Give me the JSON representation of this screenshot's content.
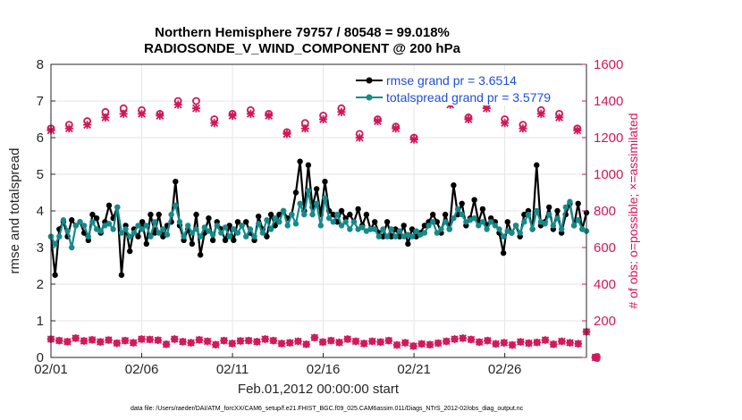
{
  "chart_data": {
    "type": "line",
    "title": "Northern Hemisphere 79757 / 80548 = 99.018%",
    "subtitle": "RADIOSONDE_V_WIND_COMPONENT @ 200 hPa",
    "xlabel": "Feb.01,2012 00:00:00 start",
    "ylabel": "rmse and totalspread",
    "ylabel_right": "# of obs: o=possible; ×=assimilated",
    "footer": "data file: /Users/raeder/DAI/ATM_forcXX/CAM6_setup/f.e21.FHIST_BGC.f09_025.CAM6assim.011/Diags_NTrS_2012-02/obs_diag_output.nc",
    "x_range": [
      1,
      30.5
    ],
    "x_ticks": [
      1,
      6,
      11,
      16,
      21,
      26
    ],
    "x_tick_labels": [
      "02/01",
      "02/06",
      "02/11",
      "02/16",
      "02/21",
      "02/26"
    ],
    "ylim": [
      0,
      8
    ],
    "y_ticks": [
      "0",
      "1",
      "2",
      "3",
      "4",
      "5",
      "6",
      "7",
      "8"
    ],
    "ylim_right": [
      0,
      1600
    ],
    "y_ticks_right": [
      "0",
      "200",
      "400",
      "600",
      "800",
      "1000",
      "1200",
      "1400",
      "1600"
    ],
    "grid": true,
    "legend_position": "top-right",
    "colors": {
      "rmse": "#000000",
      "spread": "#168a8a",
      "obs": "#d0185a",
      "legend_text": "#1f4fd1"
    },
    "series": [
      {
        "name": "rmse grand pr = 3.6514",
        "axis": "left",
        "values": [
          3.3,
          2.25,
          3.5,
          3.7,
          3.3,
          3.75,
          3.6,
          3.7,
          3.4,
          3.2,
          3.9,
          3.8,
          3.4,
          3.7,
          4.15,
          3.8,
          4.1,
          2.25,
          3.6,
          2.9,
          3.5,
          3.3,
          3.7,
          3.1,
          3.9,
          3.4,
          3.9,
          3.3,
          3.6,
          3.7,
          4.8,
          3.6,
          3.2,
          3.5,
          3.1,
          3.9,
          2.8,
          3.4,
          3.8,
          3.2,
          3.7,
          3.5,
          3.2,
          3.6,
          3.2,
          3.7,
          3.6,
          3.7,
          3.4,
          3.2,
          3.85,
          3.5,
          3.3,
          3.9,
          3.6,
          3.9,
          4.0,
          3.8,
          3.9,
          4.5,
          5.35,
          4.0,
          5.25,
          4.1,
          4.6,
          3.9,
          4.8,
          4.0,
          3.9,
          3.7,
          4.0,
          3.8,
          3.9,
          3.7,
          4.05,
          3.6,
          3.9,
          3.5,
          3.7,
          3.4,
          3.3,
          3.7,
          3.3,
          3.5,
          3.3,
          3.6,
          3.1,
          3.5,
          3.3,
          3.4,
          3.6,
          3.7,
          3.9,
          3.7,
          3.4,
          3.9,
          3.5,
          4.7,
          3.9,
          4.2,
          3.6,
          3.8,
          4.3,
          3.7,
          4.05,
          3.6,
          3.8,
          3.7,
          3.4,
          2.85,
          3.7,
          3.4,
          3.6,
          3.3,
          3.9,
          4.0,
          3.5,
          5.25,
          3.6,
          3.7,
          4.1,
          3.5,
          4.0,
          3.4,
          3.9,
          4.2,
          3.6,
          4.2,
          3.5,
          3.95
        ],
        "marker": "dot"
      },
      {
        "name": "totalspread grand pr = 3.5779",
        "axis": "left",
        "values": [
          3.3,
          3.1,
          3.3,
          3.75,
          3.45,
          3.0,
          3.6,
          3.7,
          3.6,
          3.3,
          3.7,
          3.5,
          3.45,
          3.6,
          3.65,
          3.5,
          4.1,
          3.4,
          3.5,
          3.3,
          3.4,
          3.6,
          3.5,
          3.6,
          3.3,
          3.7,
          3.4,
          3.5,
          3.35,
          3.9,
          4.15,
          3.7,
          3.3,
          3.6,
          3.4,
          3.5,
          3.3,
          3.55,
          3.45,
          3.35,
          3.6,
          3.4,
          3.55,
          3.3,
          3.5,
          3.4,
          3.6,
          3.3,
          3.5,
          3.3,
          3.65,
          3.4,
          3.75,
          3.5,
          3.8,
          3.7,
          4.0,
          3.6,
          3.9,
          3.65,
          4.2,
          3.9,
          4.55,
          3.9,
          4.2,
          3.6,
          4.35,
          3.8,
          3.7,
          3.9,
          3.6,
          3.7,
          3.5,
          3.7,
          3.5,
          3.55,
          3.45,
          3.5,
          3.5,
          3.3,
          3.5,
          3.3,
          3.5,
          3.3,
          3.45,
          3.3,
          3.35,
          3.3,
          3.45,
          3.35,
          3.4,
          3.6,
          3.7,
          3.4,
          3.5,
          3.7,
          3.5,
          3.8,
          4.05,
          3.9,
          3.7,
          3.75,
          3.8,
          3.6,
          3.7,
          3.5,
          3.7,
          3.6,
          3.5,
          3.3,
          3.45,
          3.4,
          3.6,
          3.4,
          3.7,
          3.9,
          3.5,
          4.0,
          3.7,
          3.65,
          3.9,
          3.6,
          3.8,
          3.5,
          4.1,
          4.25,
          3.6,
          3.75,
          3.5,
          3.45
        ],
        "marker": "dot"
      },
      {
        "name": "possible",
        "axis": "right",
        "marker": "o",
        "values_daily_start": 1,
        "values": [
          1250,
          1270,
          1290,
          1340,
          1360,
          1350,
          1330,
          1400,
          1400,
          1300,
          1330,
          1350,
          1330,
          1230,
          1280,
          1320,
          1360,
          1220,
          1300,
          1260,
          1200,
          1430,
          1400,
          1310,
          1380,
          1300,
          1270,
          1350,
          1330,
          1250,
          0
        ],
        "values_assim": [
          1240,
          1250,
          1270,
          1310,
          1330,
          1330,
          1320,
          1380,
          1360,
          1280,
          1320,
          1330,
          1320,
          1220,
          1250,
          1300,
          1340,
          1200,
          1290,
          1250,
          1190,
          1410,
          1380,
          1300,
          1360,
          1280,
          1250,
          1330,
          1310,
          1240,
          0
        ]
      },
      {
        "name": "assimilated (low band)",
        "axis": "right",
        "marker": "x",
        "values": [
          100,
          92,
          86,
          105,
          90,
          96,
          85,
          95,
          78,
          92,
          80,
          100,
          98,
          94,
          72,
          100,
          86,
          80,
          96,
          88,
          70,
          92,
          76,
          90,
          92,
          86,
          100,
          92,
          76,
          80,
          88,
          72,
          108,
          84,
          92,
          82,
          100,
          88,
          76,
          88,
          84,
          92,
          68,
          80,
          62,
          74,
          70,
          78,
          88,
          100,
          105,
          98,
          84,
          92,
          74,
          80,
          68,
          85,
          78,
          82,
          95,
          72,
          88,
          80,
          75,
          140
        ]
      }
    ]
  }
}
